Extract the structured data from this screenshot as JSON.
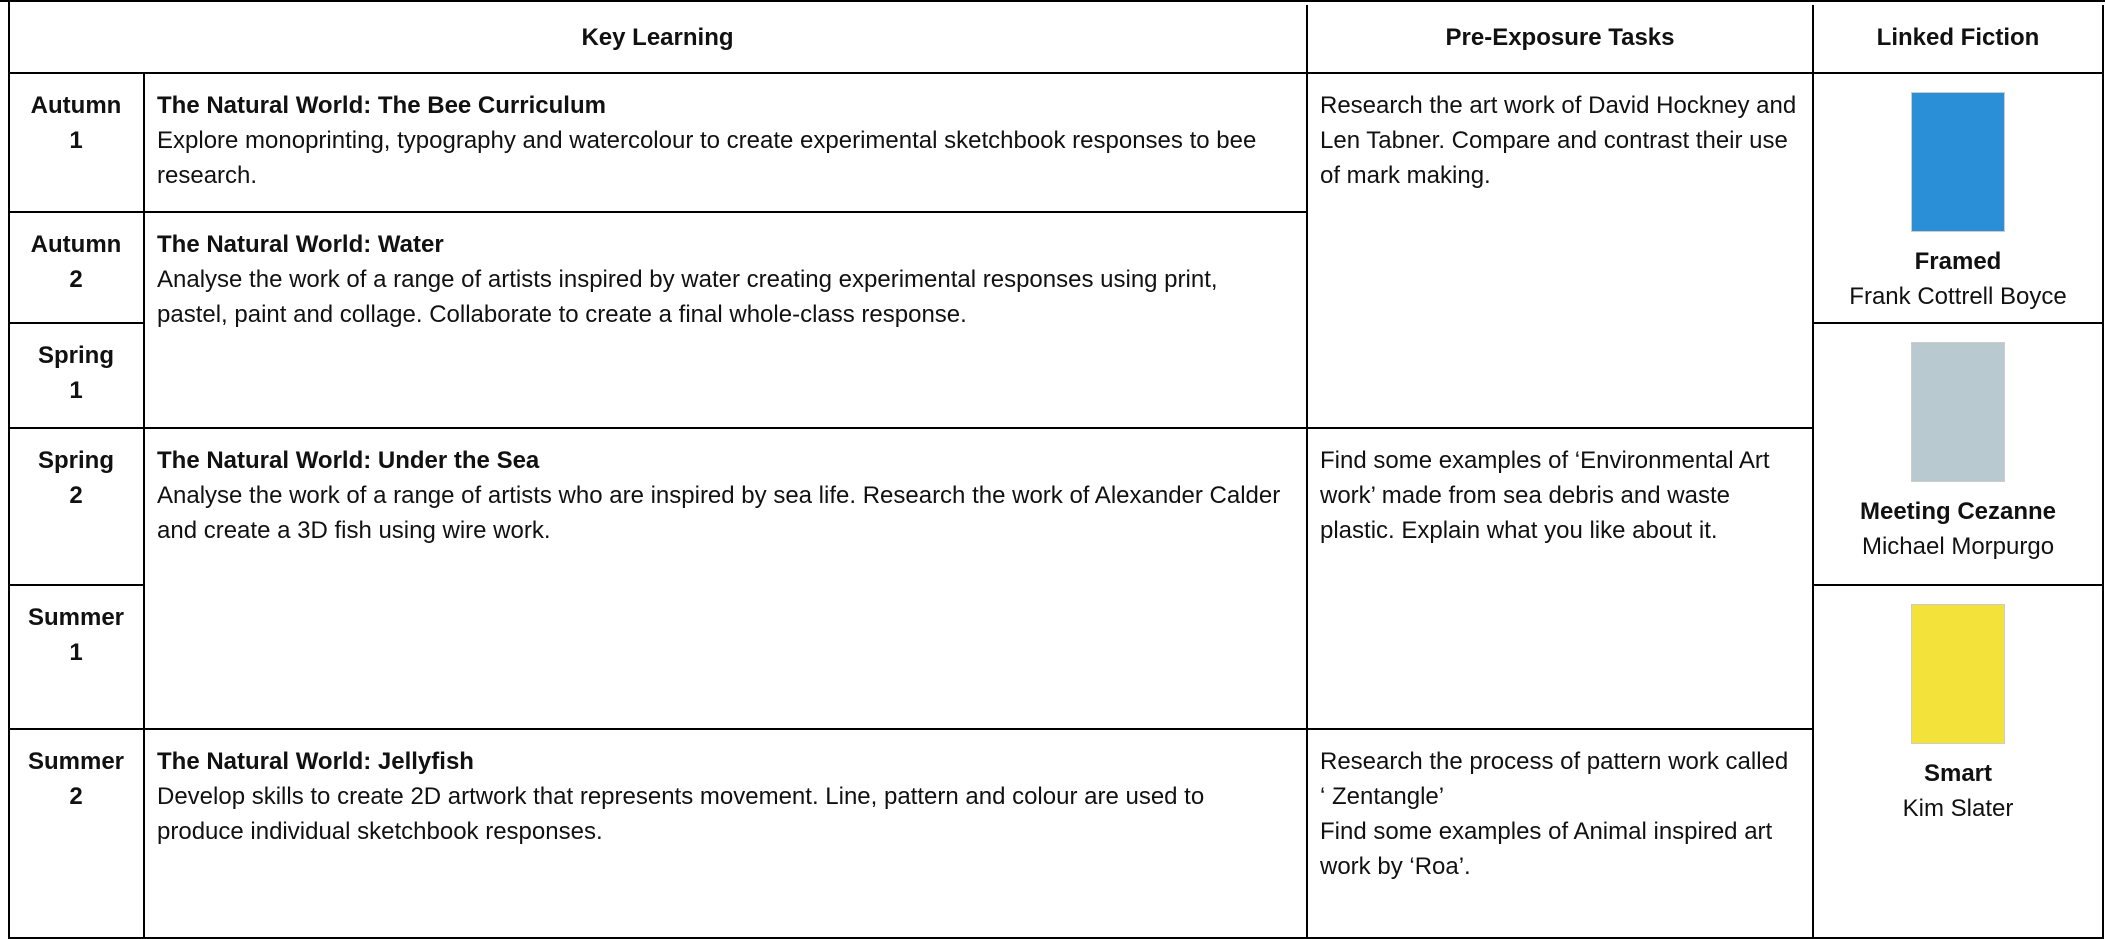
{
  "header": {
    "columns": [
      "Key Learning",
      "Pre-Exposure Tasks",
      "Linked Fiction"
    ]
  },
  "terms": [
    {
      "name": "Autumn",
      "number": "1"
    },
    {
      "name": "Autumn",
      "number": "2"
    },
    {
      "name": "Spring",
      "number": "1"
    },
    {
      "name": "Spring",
      "number": "2"
    },
    {
      "name": "Summer",
      "number": "1"
    },
    {
      "name": "Summer",
      "number": "2"
    }
  ],
  "key_learning": [
    {
      "title": "The Natural World:  The Bee Curriculum",
      "text": "Explore monoprinting, typography and watercolour to create experimental sketchbook responses to bee research."
    },
    {
      "title": "The Natural World:  Water",
      "text": "Analyse the work of a range of artists inspired by water creating experimental responses using print, pastel, paint and collage.  Collaborate to create a final whole-class response."
    },
    {
      "title": "The Natural World:  Under the Sea",
      "text": "Analyse the work of a range of artists who are inspired by sea life. Research the work of Alexander Calder and create a 3D fish using wire work."
    },
    {
      "title": "The Natural World:  Jellyfish",
      "text": "Develop skills to create 2D artwork that represents movement. Line, pattern and colour are used to produce individual sketchbook responses."
    }
  ],
  "pre_exposure": [
    {
      "paragraphs": [
        "Research the art work of David Hockney and Len Tabner.  Compare and contrast their use of mark making."
      ]
    },
    {
      "paragraphs": [
        "Find some examples of ‘Environmental Art work’ made from sea debris and waste plastic.  Explain what you like about it."
      ]
    },
    {
      "paragraphs": [
        "Research the process of pattern work called ‘ Zentangle’",
        "Find some examples of Animal inspired art work by ‘Roa’."
      ]
    }
  ],
  "fiction": [
    {
      "title": "Framed",
      "author": "Frank Cottrell Boyce"
    },
    {
      "title": "Meeting Cezanne",
      "author": "Michael Morpurgo"
    },
    {
      "title": "Smart",
      "author": "Kim Slater"
    }
  ]
}
